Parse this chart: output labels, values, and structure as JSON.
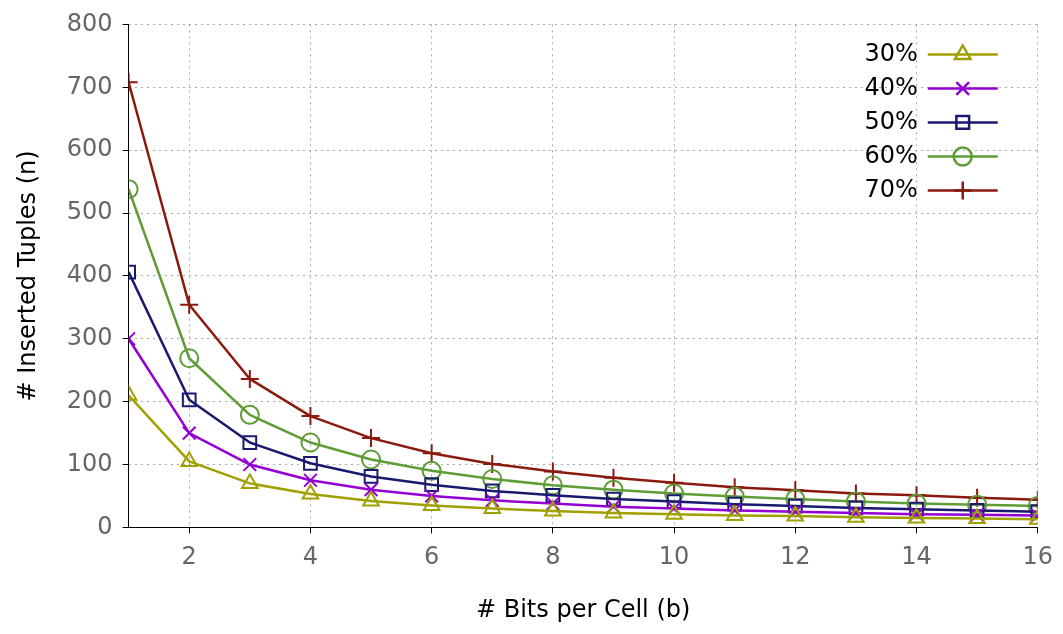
{
  "chart_data": {
    "type": "line",
    "xlabel": "# Bits per Cell (b)",
    "ylabel": "# Inserted Tuples (n)",
    "x": [
      1,
      2,
      3,
      4,
      5,
      6,
      7,
      8,
      9,
      10,
      11,
      12,
      13,
      14,
      15,
      16
    ],
    "xlim": [
      1,
      16
    ],
    "xticks": [
      2,
      4,
      6,
      8,
      10,
      12,
      14,
      16
    ],
    "ylim": [
      0,
      800
    ],
    "yticks": [
      0,
      100,
      200,
      300,
      400,
      500,
      600,
      700,
      800
    ],
    "grid": true,
    "legend": "top right",
    "line_style": "solid",
    "series": [
      {
        "name": "30%",
        "color": "#a0a000",
        "marker": "triangle",
        "values": [
          210,
          105,
          70,
          53,
          42,
          35,
          30,
          26,
          23,
          21,
          19,
          18,
          16,
          15,
          14,
          13
        ]
      },
      {
        "name": "40%",
        "color": "#9400d3",
        "marker": "cross",
        "values": [
          300,
          150,
          100,
          75,
          60,
          50,
          43,
          38,
          33,
          30,
          27,
          25,
          23,
          21,
          20,
          19
        ]
      },
      {
        "name": "50%",
        "color": "#191970",
        "marker": "square",
        "values": [
          406,
          203,
          135,
          102,
          81,
          68,
          58,
          51,
          45,
          41,
          37,
          34,
          31,
          29,
          27,
          25
        ]
      },
      {
        "name": "60%",
        "color": "#5e9c36",
        "marker": "circle",
        "values": [
          538,
          269,
          179,
          135,
          108,
          90,
          77,
          67,
          60,
          54,
          49,
          45,
          41,
          38,
          36,
          34
        ]
      },
      {
        "name": "70%",
        "color": "#8b1a0e",
        "marker": "plus",
        "values": [
          708,
          354,
          236,
          177,
          142,
          118,
          101,
          89,
          79,
          71,
          64,
          59,
          54,
          51,
          47,
          44
        ]
      }
    ]
  }
}
